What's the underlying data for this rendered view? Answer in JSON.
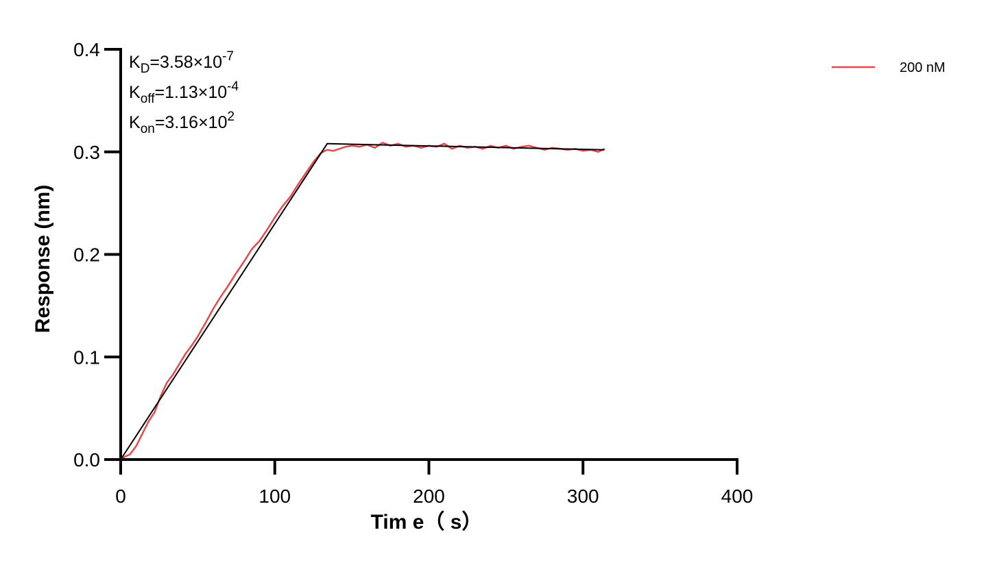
{
  "chart_data": {
    "type": "line",
    "xlabel": "Tim e（ s）",
    "ylabel": "Response (nm)",
    "xlim": [
      0,
      400
    ],
    "ylim": [
      0,
      0.4
    ],
    "xticks": [
      "0",
      "100",
      "200",
      "300",
      "400"
    ],
    "yticks": [
      "0.0",
      "0.1",
      "0.2",
      "0.3",
      "0.4"
    ],
    "grid": false,
    "legend_position": "top-right",
    "annotations": [
      {
        "main": "K",
        "sub": "D",
        "rest": "=3.58×10",
        "sup": "-7"
      },
      {
        "main": "K",
        "sub": "off",
        "rest": "=1.13×10",
        "sup": "-4"
      },
      {
        "main": "K",
        "sub": "on",
        "rest": "=3.16×10",
        "sup": "2"
      }
    ],
    "series": [
      {
        "name": "200 nM",
        "color": "#e8474c",
        "x": [
          0,
          3,
          6,
          10,
          14,
          18,
          22,
          26,
          30,
          34,
          38,
          42,
          46,
          50,
          55,
          60,
          65,
          70,
          75,
          80,
          85,
          90,
          95,
          100,
          105,
          110,
          115,
          120,
          125,
          130,
          134,
          138,
          142,
          146,
          150,
          155,
          160,
          165,
          170,
          175,
          180,
          185,
          190,
          195,
          200,
          205,
          210,
          215,
          220,
          225,
          230,
          235,
          240,
          245,
          250,
          255,
          260,
          265,
          270,
          275,
          280,
          285,
          290,
          295,
          300,
          305,
          310,
          314
        ],
        "y": [
          0.0,
          0.003,
          0.005,
          0.013,
          0.025,
          0.037,
          0.046,
          0.062,
          0.075,
          0.083,
          0.093,
          0.103,
          0.111,
          0.12,
          0.133,
          0.147,
          0.159,
          0.17,
          0.182,
          0.193,
          0.205,
          0.213,
          0.224,
          0.236,
          0.247,
          0.256,
          0.268,
          0.279,
          0.29,
          0.299,
          0.302,
          0.301,
          0.303,
          0.305,
          0.306,
          0.305,
          0.307,
          0.304,
          0.309,
          0.306,
          0.308,
          0.305,
          0.306,
          0.304,
          0.306,
          0.305,
          0.308,
          0.303,
          0.306,
          0.304,
          0.305,
          0.303,
          0.306,
          0.304,
          0.306,
          0.303,
          0.305,
          0.306,
          0.304,
          0.302,
          0.304,
          0.303,
          0.302,
          0.303,
          0.301,
          0.302,
          0.3,
          0.303
        ]
      },
      {
        "name": "",
        "color": "#000000",
        "x": [
          0,
          134,
          134.5,
          314
        ],
        "y": [
          0.0,
          0.308,
          0.308,
          0.302
        ]
      }
    ]
  }
}
